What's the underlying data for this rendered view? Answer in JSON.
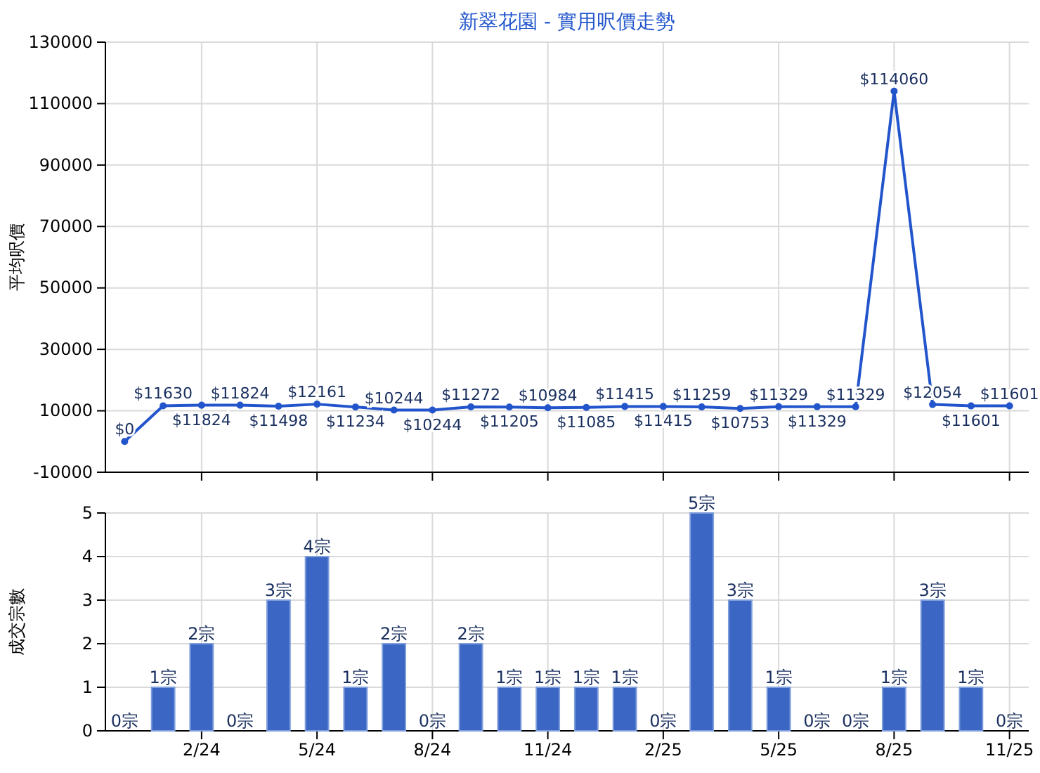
{
  "chart_data": [
    {
      "type": "line",
      "title": "新翠花園 - 實用呎價走勢",
      "ylabel": "平均呎價",
      "categories": [
        null,
        null,
        null,
        null,
        null,
        null,
        null,
        null,
        null,
        null,
        null,
        null,
        null,
        null,
        null,
        null,
        null,
        null,
        null,
        null,
        null,
        null,
        null,
        null
      ],
      "series": [
        {
          "color": "#2255cc",
          "values": [
            0,
            11630,
            11824,
            11824,
            11498,
            12161,
            11234,
            10244,
            10244,
            11272,
            11205,
            10984,
            11085,
            11415,
            11415,
            11259,
            10753,
            11329,
            11329,
            11329,
            114060,
            12054,
            11601,
            11601
          ],
          "value_labels": [
            "$0",
            "$11630",
            "$11824",
            "$11824",
            "$11498",
            "$12161",
            "$11234",
            "$10244",
            "$10244",
            "$11272",
            "$11205",
            "$10984",
            "$11085",
            "$11415",
            "$11415",
            "$11259",
            "$10753",
            "$11329",
            "$11329",
            "$11329",
            "$114060",
            "$12054",
            "$11601",
            "$11601"
          ]
        }
      ],
      "ylim": [
        -10000,
        130000
      ],
      "yticks": [
        -10000,
        10000,
        30000,
        50000,
        70000,
        90000,
        110000,
        130000
      ],
      "grid": true,
      "marker": "circle",
      "line_style": "solid",
      "tick_labels": "y"
    },
    {
      "type": "bar",
      "ylabel": "成交宗數",
      "categories": [
        null,
        null,
        "2/24",
        null,
        null,
        "5/24",
        null,
        null,
        "8/24",
        null,
        null,
        "11/24",
        null,
        null,
        "2/25",
        null,
        null,
        "5/25",
        null,
        null,
        "8/25",
        null,
        null,
        "11/25"
      ],
      "series": [
        {
          "color": "#3b66c4",
          "values": [
            0,
            1,
            2,
            0,
            3,
            4,
            1,
            2,
            0,
            2,
            1,
            1,
            1,
            1,
            0,
            5,
            3,
            1,
            0,
            0,
            1,
            3,
            1,
            0
          ],
          "value_labels": [
            "0宗",
            "1宗",
            "2宗",
            "0宗",
            "3宗",
            "4宗",
            "1宗",
            "2宗",
            "0宗",
            "2宗",
            "1宗",
            "1宗",
            "1宗",
            "1宗",
            "0宗",
            "5宗",
            "3宗",
            "1宗",
            "0宗",
            "0宗",
            "1宗",
            "3宗",
            "1宗",
            "0宗"
          ]
        }
      ],
      "ylim": [
        0,
        5
      ],
      "yticks": [
        0,
        1,
        2,
        3,
        4,
        5
      ],
      "grid": true
    }
  ]
}
